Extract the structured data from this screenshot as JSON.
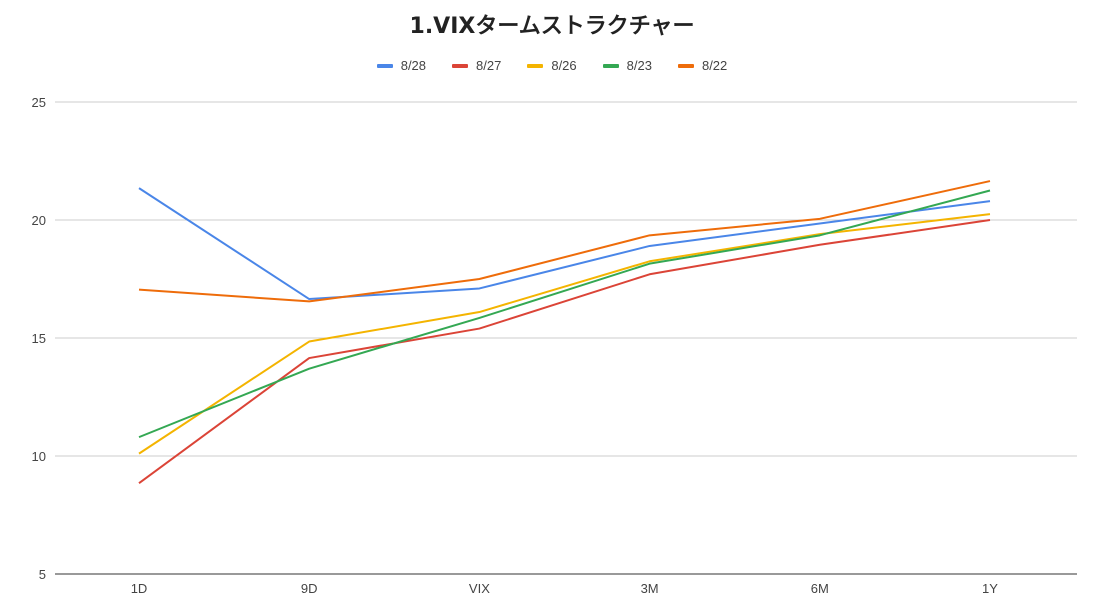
{
  "chart_data": {
    "type": "line",
    "title": "1.VIXタームストラクチャー",
    "xlabel": "",
    "ylabel": "",
    "categories": [
      "1D",
      "9D",
      "VIX",
      "3M",
      "6M",
      "1Y"
    ],
    "ylim": [
      5,
      25
    ],
    "yticks": [
      5,
      10,
      15,
      20,
      25
    ],
    "grid": true,
    "legend_position": "top",
    "series": [
      {
        "name": "8/28",
        "color": "#4a86e8",
        "values": [
          21.35,
          16.65,
          17.1,
          18.9,
          19.85,
          20.8
        ]
      },
      {
        "name": "8/27",
        "color": "#db4437",
        "values": [
          8.85,
          14.15,
          15.4,
          17.7,
          18.95,
          20.0
        ]
      },
      {
        "name": "8/26",
        "color": "#f4b400",
        "values": [
          10.1,
          14.85,
          16.1,
          18.25,
          19.4,
          20.25
        ]
      },
      {
        "name": "8/23",
        "color": "#34a853",
        "values": [
          10.8,
          13.7,
          15.85,
          18.15,
          19.35,
          21.25
        ]
      },
      {
        "name": "8/22",
        "color": "#ee6c0a",
        "values": [
          17.05,
          16.55,
          17.5,
          19.35,
          20.05,
          21.65
        ]
      }
    ]
  }
}
